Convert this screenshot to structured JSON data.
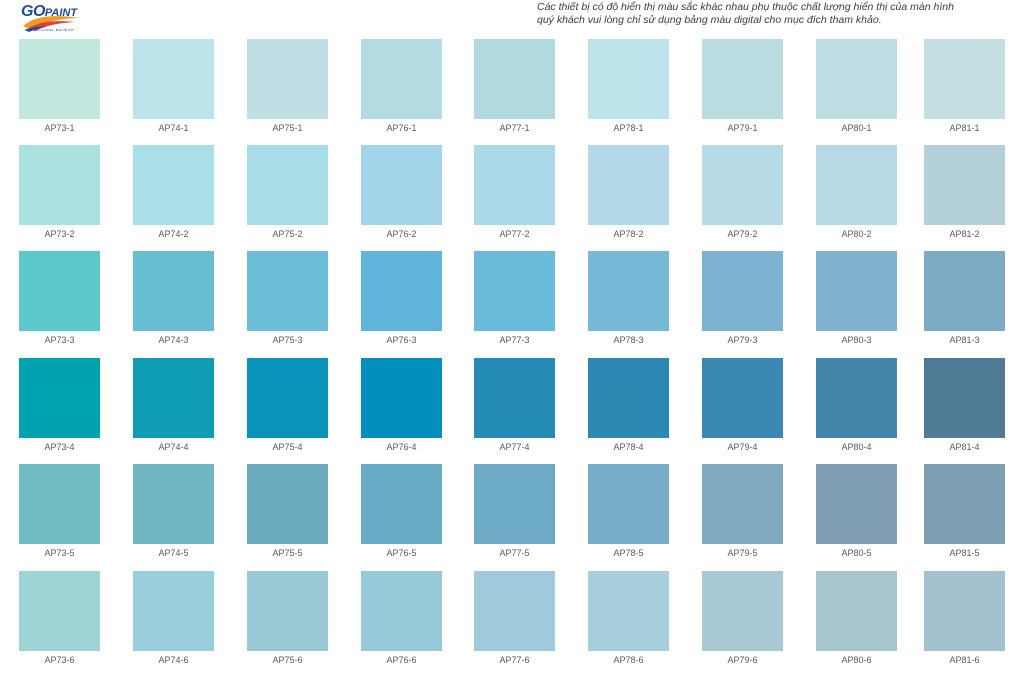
{
  "header": {
    "logo_go": "GO",
    "logo_paint": "PAINT",
    "logo_tagline": "PHẢI CHẤT LƯỢNG · BẢO VỆ TỐT",
    "disclaimer_line1": "Các thiết bị có độ hiển thị màu sắc khác nhau phụ thuộc chất lượng hiển thị của màn hình",
    "disclaimer_line2": "quý khách vui lòng chỉ sử dụng bảng màu digital cho mục đích tham khảo."
  },
  "colors": {
    "logo_blue": "#1c4a9c",
    "logo_orange": "#f29a1f",
    "logo_red": "#e2403a"
  },
  "rows": [
    [
      {
        "code": "AP73-1",
        "color": "#c1e7df"
      },
      {
        "code": "AP74-1",
        "color": "#bde3eb"
      },
      {
        "code": "AP75-1",
        "color": "#bfdfe5"
      },
      {
        "code": "AP76-1",
        "color": "#b3dbe1"
      },
      {
        "code": "AP77-1",
        "color": "#b3d9e0"
      },
      {
        "code": "AP78-1",
        "color": "#bde4ea"
      },
      {
        "code": "AP79-1",
        "color": "#bbdde2"
      },
      {
        "code": "AP80-1",
        "color": "#bfdde2"
      },
      {
        "code": "AP81-1",
        "color": "#c3dfe2"
      }
    ],
    [
      {
        "code": "AP73-2",
        "color": "#a9e2df"
      },
      {
        "code": "AP74-2",
        "color": "#a9e0e7"
      },
      {
        "code": "AP75-2",
        "color": "#a8dce7"
      },
      {
        "code": "AP76-2",
        "color": "#a3d5ea"
      },
      {
        "code": "AP77-2",
        "color": "#acd9e9"
      },
      {
        "code": "AP78-2",
        "color": "#b3d8e8"
      },
      {
        "code": "AP79-2",
        "color": "#b6dae6"
      },
      {
        "code": "AP80-2",
        "color": "#b6d9e5"
      },
      {
        "code": "AP81-2",
        "color": "#b4d1d9"
      }
    ],
    [
      {
        "code": "AP73-3",
        "color": "#5ccacc"
      },
      {
        "code": "AP74-3",
        "color": "#67bed2"
      },
      {
        "code": "AP75-3",
        "color": "#6bbdd8"
      },
      {
        "code": "AP76-3",
        "color": "#62b5da"
      },
      {
        "code": "AP77-3",
        "color": "#6cbad9"
      },
      {
        "code": "AP78-3",
        "color": "#76b9d7"
      },
      {
        "code": "AP79-3",
        "color": "#7bb3d0"
      },
      {
        "code": "AP80-3",
        "color": "#80b2cf"
      },
      {
        "code": "AP81-3",
        "color": "#7dabc4"
      }
    ],
    [
      {
        "code": "AP73-4",
        "color": "#00a3ae"
      },
      {
        "code": "AP74-4",
        "color": "#0e9db3"
      },
      {
        "code": "AP75-4",
        "color": "#0a93b8"
      },
      {
        "code": "AP76-4",
        "color": "#008ebe"
      },
      {
        "code": "AP77-4",
        "color": "#238bb6"
      },
      {
        "code": "AP78-4",
        "color": "#2e88b4"
      },
      {
        "code": "AP79-4",
        "color": "#3b89b3"
      },
      {
        "code": "AP80-4",
        "color": "#4486ab"
      },
      {
        "code": "AP81-4",
        "color": "#4f7b96"
      }
    ],
    [
      {
        "code": "AP73-5",
        "color": "#70bec4"
      },
      {
        "code": "AP74-5",
        "color": "#70b5c2"
      },
      {
        "code": "AP75-5",
        "color": "#6aabbf"
      },
      {
        "code": "AP76-5",
        "color": "#68abc4"
      },
      {
        "code": "AP77-5",
        "color": "#6caac5"
      },
      {
        "code": "AP78-5",
        "color": "#78adc7"
      },
      {
        "code": "AP79-5",
        "color": "#7ea9bf"
      },
      {
        "code": "AP80-5",
        "color": "#809fb5"
      },
      {
        "code": "AP81-5",
        "color": "#7c9fb1"
      }
    ],
    [
      {
        "code": "AP73-6",
        "color": "#9dd5d7"
      },
      {
        "code": "AP74-6",
        "color": "#99cfdb"
      },
      {
        "code": "AP75-6",
        "color": "#98c9d4"
      },
      {
        "code": "AP76-6",
        "color": "#98c9d6"
      },
      {
        "code": "AP77-6",
        "color": "#9ecadb"
      },
      {
        "code": "AP78-6",
        "color": "#a7cfdc"
      },
      {
        "code": "AP79-6",
        "color": "#a6c9d4"
      },
      {
        "code": "AP80-6",
        "color": "#a6c5cc"
      },
      {
        "code": "AP81-6",
        "color": "#a3c1ce"
      }
    ]
  ]
}
